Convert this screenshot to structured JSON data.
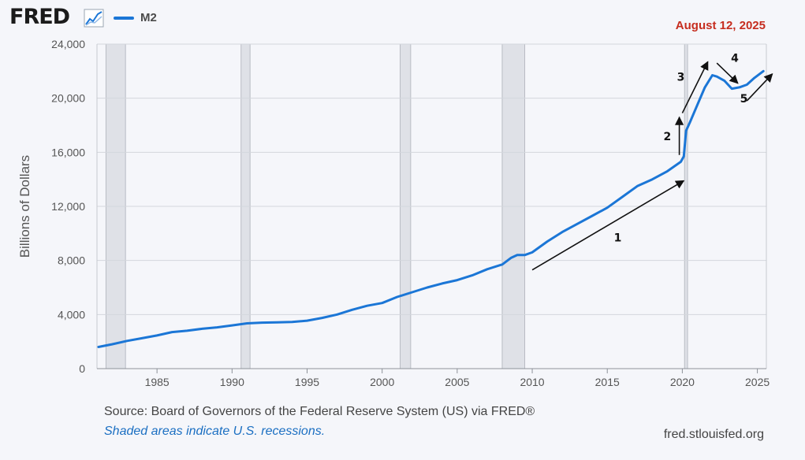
{
  "header": {
    "logo_text": "FRED",
    "logo_icon": "trend-line-icon",
    "legend_label": "M2",
    "date": "August 12, 2025"
  },
  "colors": {
    "series": "#1b76d6",
    "recession": "#dfe1e7",
    "date": "#c62d1f",
    "note": "#1b6fc2"
  },
  "chart_data": {
    "type": "line",
    "title": "",
    "xlabel": "",
    "ylabel": "Billions of Dollars",
    "xlim": [
      1981,
      2025.6
    ],
    "ylim": [
      0,
      24000
    ],
    "xticks": [
      1985,
      1990,
      1995,
      2000,
      2005,
      2010,
      2015,
      2020,
      2025
    ],
    "yticks": [
      0,
      4000,
      8000,
      12000,
      16000,
      20000,
      24000
    ],
    "ytick_labels": [
      "0",
      "4,000",
      "8,000",
      "12,000",
      "16,000",
      "20,000",
      "24,000"
    ],
    "grid": true,
    "legend": "top-left",
    "recessions": [
      [
        1981.6,
        1982.9
      ],
      [
        1990.6,
        1991.2
      ],
      [
        2001.2,
        2001.9
      ],
      [
        2008.0,
        2009.5
      ],
      [
        2020.15,
        2020.35
      ]
    ],
    "series": [
      {
        "name": "M2",
        "x": [
          1981.1,
          1982,
          1983,
          1984,
          1985,
          1986,
          1987,
          1988,
          1989,
          1990,
          1991,
          1992,
          1993,
          1994,
          1995,
          1996,
          1997,
          1998,
          1999,
          2000,
          2001,
          2002,
          2003,
          2004,
          2005,
          2006,
          2007,
          2008,
          2008.6,
          2009,
          2009.5,
          2010,
          2011,
          2012,
          2013,
          2014,
          2015,
          2016,
          2017,
          2018,
          2019,
          2019.9,
          2020.1,
          2020.25,
          2020.5,
          2021,
          2021.5,
          2022,
          2022.3,
          2022.8,
          2023.3,
          2023.8,
          2024.3,
          2024.8,
          2025.4
        ],
        "values": [
          1600,
          1800,
          2050,
          2250,
          2450,
          2700,
          2800,
          2950,
          3050,
          3200,
          3350,
          3400,
          3420,
          3450,
          3550,
          3750,
          4000,
          4350,
          4650,
          4850,
          5300,
          5650,
          6000,
          6300,
          6550,
          6900,
          7350,
          7700,
          8200,
          8400,
          8400,
          8600,
          9400,
          10100,
          10700,
          11300,
          11900,
          12700,
          13500,
          14000,
          14600,
          15300,
          15700,
          17600,
          18200,
          19500,
          20800,
          21700,
          21600,
          21300,
          20700,
          20800,
          21000,
          21500,
          22000
        ]
      }
    ],
    "annotations": [
      {
        "label": "1",
        "x": 2015.7,
        "y": 9400,
        "arrow_from": [
          2010,
          7300
        ],
        "arrow_to": [
          2020.1,
          13900
        ]
      },
      {
        "label": "2",
        "x": 2019.0,
        "y": 16900,
        "arrow_from": [
          2019.8,
          15800
        ],
        "arrow_to": [
          2019.8,
          18600
        ]
      },
      {
        "label": "3",
        "x": 2019.9,
        "y": 21300,
        "arrow_from": [
          2020.0,
          18900
        ],
        "arrow_to": [
          2021.7,
          22700
        ]
      },
      {
        "label": "4",
        "x": 2023.5,
        "y": 22700,
        "arrow_from": [
          2022.3,
          22600
        ],
        "arrow_to": [
          2023.7,
          21100
        ]
      },
      {
        "label": "5",
        "x": 2024.1,
        "y": 19700,
        "arrow_from": [
          2024.3,
          19800
        ],
        "arrow_to": [
          2026.0,
          21800
        ]
      }
    ]
  },
  "footer": {
    "source": "Source: Board of Governors of the Federal Reserve System (US) via FRED®",
    "note": "Shaded areas indicate U.S. recessions.",
    "credit": "fred.stlouisfed.org"
  }
}
